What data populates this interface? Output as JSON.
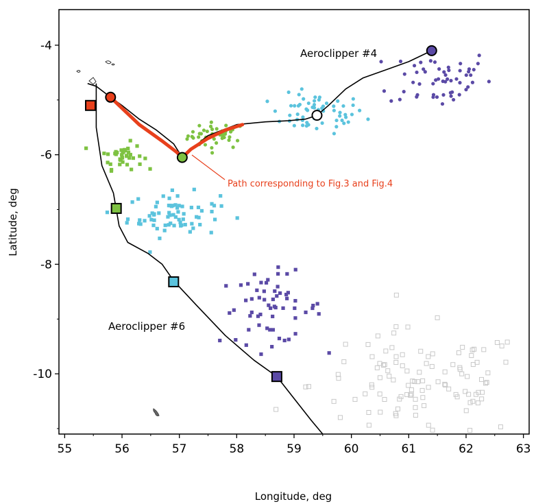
{
  "axes": {
    "xlabel": "Longitude, deg",
    "ylabel": "Latitude, deg"
  },
  "annotations": {
    "aeroclipper4": "Aeroclipper #4",
    "aeroclipper6": "Aeroclipper #6",
    "path_note": "Path corresponding to Fig.3 and Fig.4"
  },
  "colors": {
    "red": "#e8401c",
    "green": "#7ec242",
    "cyan": "#5bc3dd",
    "purple": "#5b4aa6",
    "grey": "#c8c8c8",
    "track": "#000000"
  },
  "chart_data": {
    "type": "scatter",
    "xlim": [
      54.9,
      63.1
    ],
    "ylim": [
      -11.1,
      -3.35
    ],
    "xticks": [
      55,
      56,
      57,
      58,
      59,
      60,
      61,
      62,
      63
    ],
    "yticks": [
      -4,
      -6,
      -8,
      -10
    ],
    "grid": false,
    "tracks": [
      {
        "name": "Aeroclipper #4",
        "points": [
          [
            55.4,
            -4.7
          ],
          [
            55.55,
            -4.75
          ],
          [
            55.8,
            -4.95
          ],
          [
            56.0,
            -5.1
          ],
          [
            56.3,
            -5.35
          ],
          [
            56.6,
            -5.55
          ],
          [
            56.9,
            -5.8
          ],
          [
            57.05,
            -6.05
          ],
          [
            57.2,
            -5.9
          ],
          [
            57.5,
            -5.65
          ],
          [
            58.0,
            -5.45
          ],
          [
            58.5,
            -5.4
          ],
          [
            58.9,
            -5.38
          ],
          [
            59.2,
            -5.35
          ],
          [
            59.4,
            -5.28
          ],
          [
            59.6,
            -5.1
          ],
          [
            59.9,
            -4.8
          ],
          [
            60.2,
            -4.6
          ],
          [
            60.6,
            -4.45
          ],
          [
            61.0,
            -4.3
          ],
          [
            61.4,
            -4.1
          ]
        ]
      },
      {
        "name": "Aeroclipper #6",
        "points": [
          [
            55.55,
            -4.7
          ],
          [
            55.55,
            -5.1
          ],
          [
            55.55,
            -5.5
          ],
          [
            55.65,
            -6.2
          ],
          [
            55.85,
            -6.7
          ],
          [
            55.95,
            -7.3
          ],
          [
            56.1,
            -7.6
          ],
          [
            56.45,
            -7.8
          ],
          [
            56.7,
            -8.0
          ],
          [
            56.9,
            -8.3
          ],
          [
            57.3,
            -8.75
          ],
          [
            57.8,
            -9.3
          ],
          [
            58.3,
            -9.75
          ],
          [
            58.7,
            -10.05
          ],
          [
            59.0,
            -10.45
          ],
          [
            59.3,
            -10.85
          ],
          [
            59.5,
            -11.1
          ]
        ]
      }
    ],
    "highlighted_path": {
      "name": "Path corresponding to Fig.3 and Fig.4",
      "points": [
        [
          55.75,
          -4.9
        ],
        [
          55.95,
          -5.1
        ],
        [
          56.3,
          -5.45
        ],
        [
          56.7,
          -5.75
        ],
        [
          56.95,
          -5.95
        ],
        [
          57.05,
          -6.05
        ],
        [
          57.2,
          -5.9
        ],
        [
          57.5,
          -5.7
        ],
        [
          57.8,
          -5.55
        ],
        [
          58.1,
          -5.45
        ]
      ]
    },
    "launch_markers": [
      {
        "shape": "square",
        "x": 55.45,
        "y": -5.1,
        "color": "red"
      },
      {
        "shape": "circle",
        "x": 55.8,
        "y": -4.95,
        "color": "red"
      }
    ],
    "track_markers": [
      {
        "track": "Aeroclipper #4",
        "shape": "circle",
        "x": 57.05,
        "y": -6.05,
        "color": "green"
      },
      {
        "track": "Aeroclipper #4",
        "shape": "circle",
        "x": 59.4,
        "y": -5.28,
        "color": "none"
      },
      {
        "track": "Aeroclipper #4",
        "shape": "circle",
        "x": 61.4,
        "y": -4.1,
        "color": "purple"
      },
      {
        "track": "Aeroclipper #6",
        "shape": "square",
        "x": 55.9,
        "y": -6.98,
        "color": "green"
      },
      {
        "track": "Aeroclipper #6",
        "shape": "square",
        "x": 56.9,
        "y": -8.32,
        "color": "cyan"
      },
      {
        "track": "Aeroclipper #6",
        "shape": "square",
        "x": 58.7,
        "y": -10.05,
        "color": "purple"
      }
    ],
    "scatter_clusters": [
      {
        "track": "Aeroclipper #4",
        "shape": "circle",
        "color": "green",
        "cx": 57.65,
        "cy": -5.65,
        "sx": 0.25,
        "sy": 0.12,
        "n": 45
      },
      {
        "track": "Aeroclipper #4",
        "shape": "circle",
        "color": "cyan",
        "cx": 59.4,
        "cy": -5.25,
        "sx": 0.42,
        "sy": 0.18,
        "n": 60
      },
      {
        "track": "Aeroclipper #4",
        "shape": "circle",
        "color": "purple",
        "cx": 61.55,
        "cy": -4.6,
        "sx": 0.45,
        "sy": 0.28,
        "n": 55
      },
      {
        "track": "Aeroclipper #6",
        "shape": "square",
        "color": "green",
        "cx": 56.0,
        "cy": -6.02,
        "sx": 0.18,
        "sy": 0.12,
        "n": 40
      },
      {
        "track": "Aeroclipper #6",
        "shape": "square",
        "color": "cyan",
        "cx": 56.9,
        "cy": -7.1,
        "sx": 0.4,
        "sy": 0.2,
        "n": 70
      },
      {
        "track": "Aeroclipper #6",
        "shape": "square",
        "color": "purple",
        "cx": 58.6,
        "cy": -8.8,
        "sx": 0.45,
        "sy": 0.32,
        "n": 60
      },
      {
        "track": "Aeroclipper #6",
        "shape": "square-open",
        "color": "grey",
        "cx": 61.2,
        "cy": -10.2,
        "sx": 0.95,
        "sy": 0.5,
        "n": 110
      }
    ]
  }
}
